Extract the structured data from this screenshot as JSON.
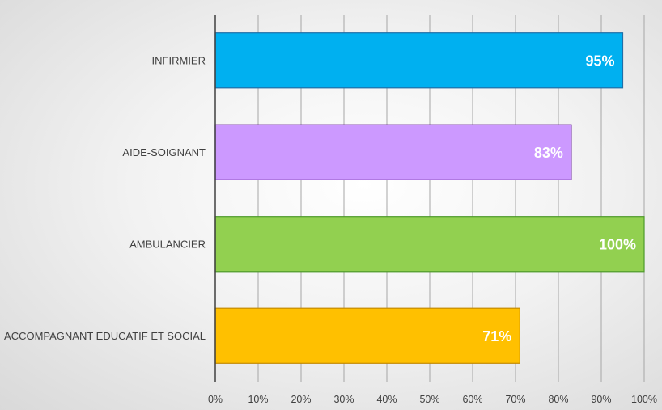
{
  "chart_data": {
    "type": "bar",
    "orientation": "horizontal",
    "categories": [
      "INFIRMIER",
      "AIDE-SOIGNANT",
      "AMBULANCIER",
      "ACCOMPAGNANT EDUCATIF ET SOCIAL"
    ],
    "values": [
      95,
      83,
      100,
      71
    ],
    "data_labels": [
      "95%",
      "83%",
      "100%",
      "71%"
    ],
    "colors": [
      "#00B0F0",
      "#CC99FF",
      "#92D050",
      "#FFC000"
    ],
    "border_colors": [
      "#1F6FA8",
      "#7030A0",
      "#4E9A2A",
      "#C58A00"
    ],
    "title": "",
    "xlabel": "",
    "ylabel": "",
    "xlim": [
      0,
      100
    ],
    "x_ticks": [
      0,
      10,
      20,
      30,
      40,
      50,
      60,
      70,
      80,
      90,
      100
    ],
    "x_tick_labels": [
      "0%",
      "10%",
      "20%",
      "30%",
      "40%",
      "50%",
      "60%",
      "70%",
      "80%",
      "90%",
      "100%"
    ],
    "grid": true,
    "legend": false
  }
}
